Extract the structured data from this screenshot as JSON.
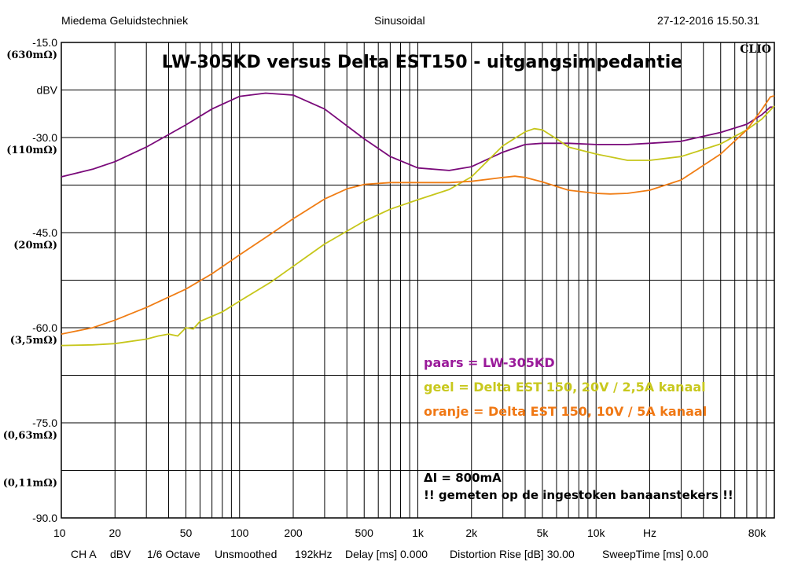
{
  "header": {
    "left": "Miedema Geluidstechniek",
    "center": "Sinusoidal",
    "right": "27-12-2016 15.50.31"
  },
  "brand": "CLIO",
  "footer": {
    "channel": "CH A",
    "unit": "dBV",
    "smoothing": "1/6 Octave",
    "smoothed": "Unsmoothed",
    "rate": "192kHz",
    "delay": "Delay [ms] 0.000",
    "distortion": "Distortion Rise [dB] 30.00",
    "sweeptime": "SweepTime [ms] 0.00"
  },
  "legend": {
    "purple": "paars  = LW-305KD",
    "yellow": "geel    = Delta EST 150, 20V / 2,5A kanaal",
    "orange": "oranje = Delta EST 150, 10V / 5A kanaal"
  },
  "notes": {
    "delta": "ΔI = 800mA",
    "warning": "!! gemeten op de ingestoken banaanstekers !!"
  },
  "colors": {
    "purple": "#7a0a7a",
    "yellow": "#c6c61a",
    "orange": "#f07d14",
    "legend_purple": "#9a1a9a",
    "legend_yellow": "#c8c81e",
    "legend_orange": "#f07814"
  },
  "chart_data": {
    "type": "line",
    "title": "LW-305KD versus Delta EST150  -  uitgangsimpedantie",
    "xlabel": "Hz",
    "ylabel": "dBV",
    "xscale": "log",
    "xlim": [
      10,
      100000
    ],
    "ylim": [
      -90,
      -15
    ],
    "grid": true,
    "x_ticks": [
      {
        "v": 10,
        "label": "10"
      },
      {
        "v": 20,
        "label": "20"
      },
      {
        "v": 50,
        "label": "50"
      },
      {
        "v": 100,
        "label": "100"
      },
      {
        "v": 200,
        "label": "200"
      },
      {
        "v": 500,
        "label": "500"
      },
      {
        "v": 1000,
        "label": "1k"
      },
      {
        "v": 2000,
        "label": "2k"
      },
      {
        "v": 5000,
        "label": "5k"
      },
      {
        "v": 10000,
        "label": "10k"
      },
      {
        "v": 20000,
        "label": "Hz"
      },
      {
        "v": 80000,
        "label": "80k"
      }
    ],
    "y_ticks": [
      {
        "v": -15,
        "label": "-15.0",
        "sub": "(630mΩ)"
      },
      {
        "v": -22.5,
        "label": "dBV",
        "sub": ""
      },
      {
        "v": -30,
        "label": "-30.0",
        "sub": "(110mΩ)"
      },
      {
        "v": -45,
        "label": "-45.0",
        "sub": "(20mΩ)"
      },
      {
        "v": -60,
        "label": "-60.0",
        "sub": "(3,5mΩ)"
      },
      {
        "v": -75,
        "label": "-75.0",
        "sub": "(0,63mΩ)"
      },
      {
        "v": -82.5,
        "label": "",
        "sub": "(0,11mΩ)"
      },
      {
        "v": -90,
        "label": "-90.0",
        "sub": ""
      }
    ],
    "series": [
      {
        "name": "paars",
        "color": "#7a0a7a",
        "points": [
          [
            10,
            -36.2
          ],
          [
            15,
            -35
          ],
          [
            20,
            -33.8
          ],
          [
            30,
            -31.5
          ],
          [
            50,
            -28
          ],
          [
            70,
            -25.5
          ],
          [
            100,
            -23.5
          ],
          [
            140,
            -23.0
          ],
          [
            200,
            -23.3
          ],
          [
            300,
            -25.5
          ],
          [
            500,
            -30.2
          ],
          [
            700,
            -33
          ],
          [
            1000,
            -34.8
          ],
          [
            1500,
            -35.2
          ],
          [
            2000,
            -34.6
          ],
          [
            3000,
            -32.3
          ],
          [
            4000,
            -31.1
          ],
          [
            5000,
            -30.9
          ],
          [
            7000,
            -30.9
          ],
          [
            10000,
            -31.1
          ],
          [
            15000,
            -31.1
          ],
          [
            20000,
            -30.9
          ],
          [
            30000,
            -30.6
          ],
          [
            50000,
            -29.2
          ],
          [
            70000,
            -27.9
          ],
          [
            85000,
            -26.4
          ],
          [
            95000,
            -25.2
          ],
          [
            100000,
            -25.2
          ]
        ]
      },
      {
        "name": "geel",
        "color": "#c6c61a",
        "points": [
          [
            10,
            -62.8
          ],
          [
            15,
            -62.7
          ],
          [
            20,
            -62.5
          ],
          [
            30,
            -61.8
          ],
          [
            35,
            -61.3
          ],
          [
            40,
            -61.0
          ],
          [
            45,
            -61.3
          ],
          [
            50,
            -60.0
          ],
          [
            55,
            -60.2
          ],
          [
            60,
            -59.0
          ],
          [
            70,
            -58.2
          ],
          [
            80,
            -57.5
          ],
          [
            100,
            -55.8
          ],
          [
            150,
            -52.8
          ],
          [
            200,
            -50.3
          ],
          [
            300,
            -46.8
          ],
          [
            500,
            -43.2
          ],
          [
            700,
            -41.3
          ],
          [
            1000,
            -39.8
          ],
          [
            1500,
            -38.2
          ],
          [
            2000,
            -36.2
          ],
          [
            3000,
            -31.3
          ],
          [
            4000,
            -29.1
          ],
          [
            4500,
            -28.6
          ],
          [
            5000,
            -28.8
          ],
          [
            6000,
            -30.2
          ],
          [
            7000,
            -31.5
          ],
          [
            10000,
            -32.6
          ],
          [
            15000,
            -33.6
          ],
          [
            20000,
            -33.6
          ],
          [
            30000,
            -33.0
          ],
          [
            50000,
            -31.0
          ],
          [
            70000,
            -28.8
          ],
          [
            85000,
            -27.1
          ],
          [
            100000,
            -25.0
          ]
        ]
      },
      {
        "name": "oranje",
        "color": "#f07d14",
        "points": [
          [
            10,
            -61.0
          ],
          [
            15,
            -60.0
          ],
          [
            20,
            -58.8
          ],
          [
            30,
            -56.8
          ],
          [
            50,
            -53.9
          ],
          [
            70,
            -51.5
          ],
          [
            100,
            -48.5
          ],
          [
            150,
            -45.2
          ],
          [
            200,
            -42.8
          ],
          [
            300,
            -39.7
          ],
          [
            400,
            -38.1
          ],
          [
            500,
            -37.4
          ],
          [
            700,
            -37.1
          ],
          [
            1000,
            -37.1
          ],
          [
            1500,
            -37.1
          ],
          [
            2000,
            -36.9
          ],
          [
            3000,
            -36.3
          ],
          [
            3500,
            -36.1
          ],
          [
            4000,
            -36.3
          ],
          [
            5000,
            -37.0
          ],
          [
            7000,
            -38.3
          ],
          [
            10000,
            -38.8
          ],
          [
            12000,
            -38.9
          ],
          [
            15000,
            -38.8
          ],
          [
            20000,
            -38.3
          ],
          [
            30000,
            -36.7
          ],
          [
            50000,
            -32.6
          ],
          [
            70000,
            -28.8
          ],
          [
            85000,
            -25.6
          ],
          [
            95000,
            -23.6
          ],
          [
            100000,
            -23.4
          ]
        ]
      }
    ]
  }
}
